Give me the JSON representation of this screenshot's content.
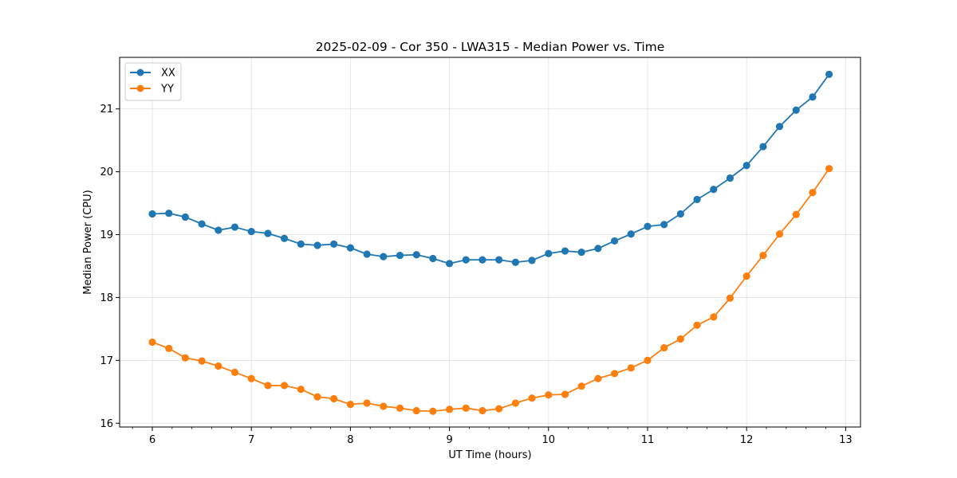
{
  "chart_data": {
    "type": "line",
    "title": "2025-02-09 - Cor 350 - LWA315 - Median Power vs. Time",
    "xlabel": "UT Time (hours)",
    "ylabel": "Median Power (CPU)",
    "xlim": [
      5.67,
      13.15
    ],
    "ylim": [
      15.94,
      21.82
    ],
    "xticks": [
      6,
      7,
      8,
      9,
      10,
      11,
      12,
      13
    ],
    "yticks": [
      16,
      17,
      18,
      19,
      20,
      21
    ],
    "grid": true,
    "legend_position": "upper-left",
    "x": [
      6.0,
      6.167,
      6.333,
      6.5,
      6.667,
      6.833,
      7.0,
      7.167,
      7.333,
      7.5,
      7.667,
      7.833,
      8.0,
      8.167,
      8.333,
      8.5,
      8.667,
      8.833,
      9.0,
      9.167,
      9.333,
      9.5,
      9.667,
      9.833,
      10.0,
      10.167,
      10.333,
      10.5,
      10.667,
      10.833,
      11.0,
      11.167,
      11.333,
      11.5,
      11.667,
      11.833,
      12.0,
      12.167,
      12.333,
      12.5,
      12.667,
      12.833
    ],
    "series": [
      {
        "name": "XX",
        "color": "#1f77b4",
        "values": [
          19.33,
          19.34,
          19.28,
          19.17,
          19.07,
          19.12,
          19.05,
          19.02,
          18.94,
          18.85,
          18.83,
          18.85,
          18.79,
          18.69,
          18.65,
          18.67,
          18.68,
          18.62,
          18.54,
          18.6,
          18.6,
          18.6,
          18.56,
          18.59,
          18.7,
          18.74,
          18.72,
          18.78,
          18.9,
          19.01,
          19.13,
          19.16,
          19.33,
          19.56,
          19.72,
          19.9,
          20.1,
          20.4,
          20.72,
          20.98,
          21.19,
          21.55
        ]
      },
      {
        "name": "YY",
        "color": "#ff7f0e",
        "values": [
          17.29,
          17.19,
          17.04,
          16.99,
          16.91,
          16.81,
          16.71,
          16.6,
          16.6,
          16.54,
          16.42,
          16.39,
          16.3,
          16.32,
          16.27,
          16.24,
          16.2,
          16.19,
          16.22,
          16.24,
          16.2,
          16.23,
          16.32,
          16.4,
          16.45,
          16.46,
          16.59,
          16.71,
          16.79,
          16.88,
          17.0,
          17.2,
          17.34,
          17.56,
          17.69,
          17.99,
          18.34,
          18.67,
          19.01,
          19.32,
          19.67,
          20.05
        ]
      }
    ]
  }
}
